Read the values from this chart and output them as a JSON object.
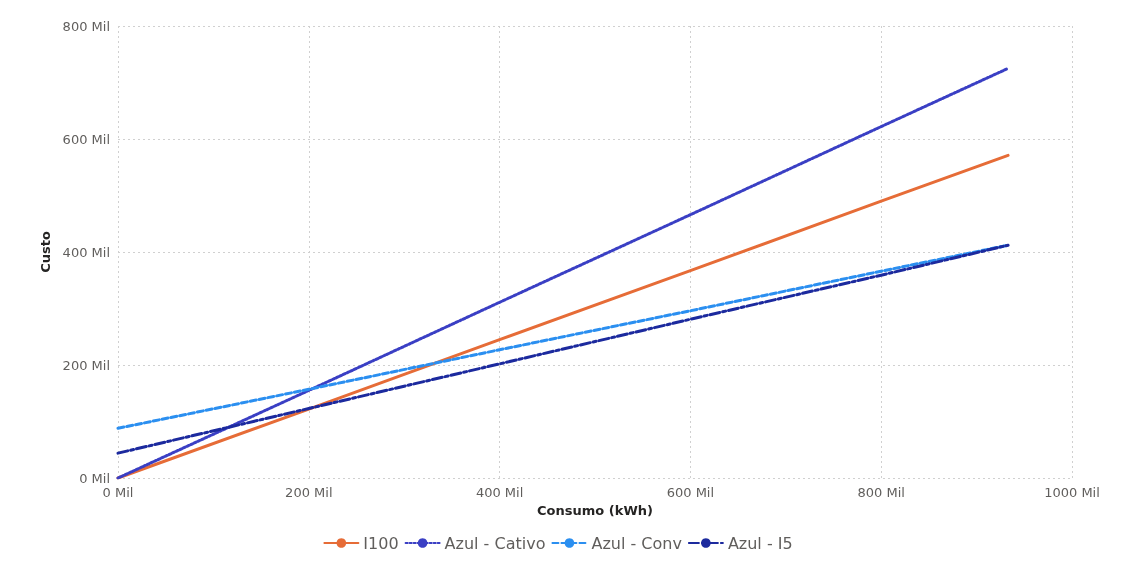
{
  "chart_data": {
    "type": "line",
    "xlabel": "Consumo (kWh)",
    "ylabel": "Custo",
    "x": [
      0,
      200,
      400,
      600,
      800,
      933
    ],
    "series": [
      {
        "name": "I100",
        "color": "#e66c37",
        "line_style": "solid",
        "values": [
          0,
          122,
          245,
          367,
          490,
          571
        ]
      },
      {
        "name": "Azul - Cativo",
        "color": "#3a3fc4",
        "line_style": "dotted",
        "values": [
          0,
          155,
          311,
          466,
          622,
          725
        ]
      },
      {
        "name": "Azul - Conv",
        "color": "#2b8ff0",
        "line_style": "dashed",
        "values": [
          88,
          157,
          227,
          296,
          366,
          412
        ]
      },
      {
        "name": "Azul - I5",
        "color": "#1c2a9e",
        "line_style": "dashdot",
        "values": [
          44,
          123,
          202,
          281,
          359,
          412
        ]
      }
    ],
    "xlim": [
      0,
      1000
    ],
    "xticks": [
      {
        "value": 0,
        "label": "0 Mil"
      },
      {
        "value": 200,
        "label": "200 Mil"
      },
      {
        "value": 400,
        "label": "400 Mil"
      },
      {
        "value": 600,
        "label": "600 Mil"
      },
      {
        "value": 800,
        "label": "800 Mil"
      },
      {
        "value": 1000,
        "label": "1000 Mil"
      }
    ],
    "ylim": [
      0,
      800
    ],
    "yticks": [
      {
        "value": 0,
        "label": "0 Mil"
      },
      {
        "value": 200,
        "label": "200 Mil"
      },
      {
        "value": 400,
        "label": "400 Mil"
      },
      {
        "value": 600,
        "label": "600 Mil"
      },
      {
        "value": 800,
        "label": "800 Mil"
      }
    ],
    "grid": true,
    "legend": "bottom",
    "marker": "none"
  }
}
